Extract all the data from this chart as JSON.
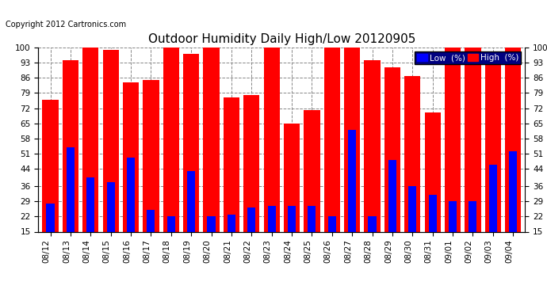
{
  "title": "Outdoor Humidity Daily High/Low 20120905",
  "copyright": "Copyright 2012 Cartronics.com",
  "legend_low_label": "Low  (%)",
  "legend_high_label": "High  (%)",
  "dates": [
    "08/12",
    "08/13",
    "08/14",
    "08/15",
    "08/16",
    "08/17",
    "08/18",
    "08/19",
    "08/20",
    "08/21",
    "08/22",
    "08/23",
    "08/24",
    "08/25",
    "08/26",
    "08/27",
    "08/28",
    "08/29",
    "08/30",
    "08/31",
    "09/01",
    "09/02",
    "09/03",
    "09/04"
  ],
  "high": [
    76,
    94,
    100,
    99,
    84,
    85,
    100,
    97,
    100,
    77,
    78,
    100,
    65,
    71,
    100,
    100,
    94,
    91,
    87,
    70,
    100,
    100,
    92,
    100
  ],
  "low": [
    28,
    54,
    40,
    38,
    49,
    25,
    22,
    43,
    22,
    23,
    26,
    27,
    27,
    27,
    22,
    62,
    22,
    48,
    36,
    32,
    29,
    29,
    46,
    52
  ],
  "ylim": [
    15,
    100
  ],
  "yticks": [
    15,
    22,
    29,
    36,
    44,
    51,
    58,
    65,
    72,
    79,
    86,
    93,
    100
  ],
  "bar_width": 0.8,
  "low_bar_width": 0.4,
  "high_color": "#ff0000",
  "low_color": "#0000ff",
  "bg_color": "#ffffff",
  "grid_color": "#888888",
  "title_fontsize": 11,
  "tick_fontsize": 7.5,
  "copyright_fontsize": 7,
  "legend_bg_color": "#000080",
  "legend_fontsize": 7.5
}
